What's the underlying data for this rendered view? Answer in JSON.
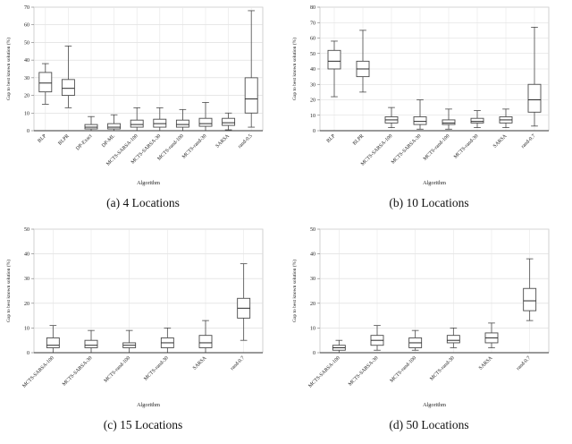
{
  "figure": {
    "background": "#ffffff",
    "grid_color": "#d9d9d9",
    "frame_color": "#bfbfbf",
    "box_stroke": "#4a4a4a",
    "axis_color": "#333333"
  },
  "chart_data": [
    {
      "type": "box",
      "caption": "(a) 4 Locations",
      "xlabel": "Algorithm",
      "ylabel": "Gap to best known solution (%)",
      "ylim": [
        0,
        70
      ],
      "yticks": [
        0,
        10,
        20,
        30,
        40,
        50,
        60,
        70
      ],
      "grid": true,
      "legend": false,
      "categories": [
        "BLP",
        "BLPR",
        "DP-Exact",
        "DP-ML",
        "MCTS-SARSA-100",
        "MCTS-SARSA-30",
        "MCTS-rand-100",
        "MCTS-rand-30",
        "SARSA",
        "rand-0.5"
      ],
      "boxes": [
        {
          "whisker_low": 15,
          "q1": 22,
          "median": 27,
          "q3": 33,
          "whisker_high": 38
        },
        {
          "whisker_low": 13,
          "q1": 20,
          "median": 24,
          "q3": 29,
          "whisker_high": 48
        },
        {
          "whisker_low": 0,
          "q1": 1,
          "median": 2,
          "q3": 3.5,
          "whisker_high": 8
        },
        {
          "whisker_low": 0,
          "q1": 1,
          "median": 2,
          "q3": 4,
          "whisker_high": 9
        },
        {
          "whisker_low": 0,
          "q1": 2,
          "median": 3.5,
          "q3": 6,
          "whisker_high": 13
        },
        {
          "whisker_low": 0,
          "q1": 2,
          "median": 4,
          "q3": 6.5,
          "whisker_high": 13
        },
        {
          "whisker_low": 0,
          "q1": 2,
          "median": 3.5,
          "q3": 6,
          "whisker_high": 12
        },
        {
          "whisker_low": 0,
          "q1": 2.5,
          "median": 4,
          "q3": 7,
          "whisker_high": 16
        },
        {
          "whisker_low": 0.5,
          "q1": 3,
          "median": 4.5,
          "q3": 7,
          "whisker_high": 10
        },
        {
          "whisker_low": 2,
          "q1": 10,
          "median": 18,
          "q3": 30,
          "whisker_high": 68
        }
      ]
    },
    {
      "type": "box",
      "caption": "(b) 10 Locations",
      "xlabel": "Algorithm",
      "ylabel": "Gap to best known solution (%)",
      "ylim": [
        0,
        80
      ],
      "yticks": [
        0,
        10,
        20,
        30,
        40,
        50,
        60,
        70,
        80
      ],
      "grid": true,
      "legend": false,
      "categories": [
        "BLP",
        "BLPR",
        "MCTS-SARSA-100",
        "MCTS-SARSA-30",
        "MCTS-rand-100",
        "MCTS-rand-30",
        "SARSA",
        "rand-0.7"
      ],
      "boxes": [
        {
          "whisker_low": 22,
          "q1": 40,
          "median": 45,
          "q3": 52,
          "whisker_high": 58
        },
        {
          "whisker_low": 25,
          "q1": 35,
          "median": 40,
          "q3": 45,
          "whisker_high": 65
        },
        {
          "whisker_low": 2,
          "q1": 5,
          "median": 7,
          "q3": 9,
          "whisker_high": 15
        },
        {
          "whisker_low": 1,
          "q1": 4,
          "median": 6,
          "q3": 9,
          "whisker_high": 20
        },
        {
          "whisker_low": 1,
          "q1": 4,
          "median": 5,
          "q3": 7,
          "whisker_high": 14
        },
        {
          "whisker_low": 2,
          "q1": 5,
          "median": 6,
          "q3": 8,
          "whisker_high": 13
        },
        {
          "whisker_low": 2,
          "q1": 5,
          "median": 7,
          "q3": 9,
          "whisker_high": 14
        },
        {
          "whisker_low": 3,
          "q1": 12,
          "median": 20,
          "q3": 30,
          "whisker_high": 67
        }
      ]
    },
    {
      "type": "box",
      "caption": "(c) 15 Locations",
      "xlabel": "Algorithm",
      "ylabel": "Gap to best known solution (%)",
      "ylim": [
        0,
        50
      ],
      "yticks": [
        0,
        10,
        20,
        30,
        40,
        50
      ],
      "grid": true,
      "legend": false,
      "categories": [
        "MCTS-SARSA-100",
        "MCTS-SARSA-30",
        "MCTS-rand-100",
        "MCTS-rand-30",
        "SARSA",
        "rand-0.7"
      ],
      "boxes": [
        {
          "whisker_low": 0,
          "q1": 2,
          "median": 3,
          "q3": 6,
          "whisker_high": 11
        },
        {
          "whisker_low": 0,
          "q1": 2,
          "median": 3,
          "q3": 5,
          "whisker_high": 9
        },
        {
          "whisker_low": 0,
          "q1": 2,
          "median": 3,
          "q3": 4,
          "whisker_high": 9
        },
        {
          "whisker_low": 0,
          "q1": 2,
          "median": 4,
          "q3": 6,
          "whisker_high": 10
        },
        {
          "whisker_low": 0,
          "q1": 2,
          "median": 4,
          "q3": 7,
          "whisker_high": 13
        },
        {
          "whisker_low": 5,
          "q1": 14,
          "median": 18,
          "q3": 22,
          "whisker_high": 36
        }
      ]
    },
    {
      "type": "box",
      "caption": "(d) 50 Locations",
      "xlabel": "Algorithm",
      "ylabel": "Gap to best known solution (%)",
      "ylim": [
        0,
        50
      ],
      "yticks": [
        0,
        10,
        20,
        30,
        40,
        50
      ],
      "grid": true,
      "legend": false,
      "categories": [
        "MCTS-SARSA-100",
        "MCTS-SARSA-30",
        "MCTS-rand-100",
        "MCTS-rand-30",
        "SARSA",
        "rand-0.7"
      ],
      "boxes": [
        {
          "whisker_low": 0,
          "q1": 1,
          "median": 2,
          "q3": 3,
          "whisker_high": 5
        },
        {
          "whisker_low": 1,
          "q1": 3,
          "median": 5,
          "q3": 7,
          "whisker_high": 11
        },
        {
          "whisker_low": 1,
          "q1": 2,
          "median": 4,
          "q3": 6,
          "whisker_high": 9
        },
        {
          "whisker_low": 2,
          "q1": 4,
          "median": 5,
          "q3": 7,
          "whisker_high": 10
        },
        {
          "whisker_low": 2,
          "q1": 4,
          "median": 6,
          "q3": 8,
          "whisker_high": 12
        },
        {
          "whisker_low": 13,
          "q1": 17,
          "median": 21,
          "q3": 26,
          "whisker_high": 38
        }
      ]
    }
  ]
}
